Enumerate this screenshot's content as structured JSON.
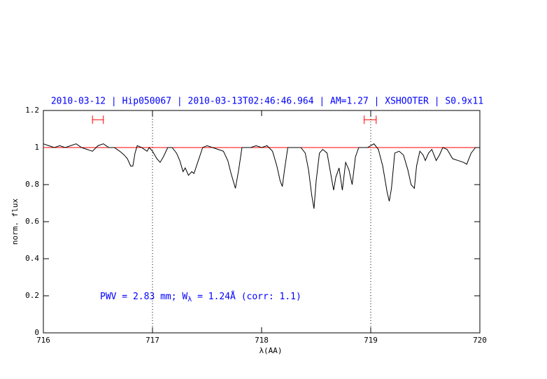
{
  "chart_data": {
    "type": "line",
    "title": "2010-03-12 | Hip050067 | 2010-03-13T02:46:46.964 | AM=1.27 | XSHOOTER | S0.9x11",
    "x_label": "λ(AA)",
    "y_label": "norm. flux",
    "annotation": {
      "prefix": "PWV = 2.83 mm; W",
      "subscript": "λ",
      "suffix": " = 1.24Å (corr: 1.1)"
    },
    "xlim": [
      716,
      720
    ],
    "ylim": [
      0,
      1.2
    ],
    "xticks": [
      716,
      717,
      718,
      719,
      720
    ],
    "yticks": [
      0,
      0.2,
      0.4,
      0.6,
      0.8,
      1,
      1.2
    ],
    "title_color": "#0000ff",
    "continuum": {
      "value": 1,
      "color": "#ff0000"
    },
    "vlines": [
      717,
      719
    ],
    "ranges": {
      "color": "#ff0000",
      "y": 1.15,
      "spans": [
        [
          716.45,
          716.55
        ],
        [
          718.94,
          719.05
        ]
      ]
    },
    "series": [
      {
        "color": "#000000",
        "x": [
          716.0,
          716.05,
          716.1,
          716.15,
          716.2,
          716.25,
          716.3,
          716.35,
          716.4,
          716.45,
          716.5,
          716.55,
          716.6,
          716.65,
          716.7,
          716.74,
          716.77,
          716.8,
          716.82,
          716.84,
          716.86,
          716.9,
          716.95,
          716.97,
          717.0,
          717.04,
          717.07,
          717.1,
          717.14,
          717.18,
          717.22,
          717.25,
          717.28,
          717.3,
          717.33,
          717.36,
          717.38,
          717.42,
          717.46,
          717.5,
          717.55,
          717.6,
          717.65,
          717.69,
          717.72,
          717.76,
          717.79,
          717.82,
          717.86,
          717.9,
          717.95,
          718.0,
          718.05,
          718.1,
          718.14,
          718.17,
          718.19,
          718.21,
          718.24,
          718.28,
          718.32,
          718.36,
          718.4,
          718.43,
          718.46,
          718.48,
          718.5,
          718.53,
          718.56,
          718.6,
          718.63,
          718.66,
          718.68,
          718.71,
          718.74,
          718.77,
          718.8,
          718.83,
          718.86,
          718.89,
          718.93,
          718.97,
          719.0,
          719.03,
          719.07,
          719.11,
          719.15,
          719.17,
          719.19,
          719.22,
          719.26,
          719.3,
          719.34,
          719.37,
          719.4,
          719.42,
          719.45,
          719.48,
          719.5,
          719.53,
          719.56,
          719.6,
          719.63,
          719.66,
          719.7,
          719.75,
          719.8,
          719.85,
          719.88,
          719.92,
          719.96,
          720.0
        ],
        "values": [
          1.02,
          1.01,
          1.0,
          1.01,
          1.0,
          1.01,
          1.02,
          1.0,
          0.99,
          0.98,
          1.01,
          1.02,
          1.0,
          1.0,
          0.98,
          0.96,
          0.94,
          0.9,
          0.9,
          0.97,
          1.01,
          1.0,
          0.98,
          1.0,
          0.98,
          0.94,
          0.92,
          0.95,
          1.0,
          1.0,
          0.97,
          0.93,
          0.87,
          0.89,
          0.85,
          0.87,
          0.86,
          0.93,
          1.0,
          1.01,
          1.0,
          0.99,
          0.98,
          0.93,
          0.86,
          0.78,
          0.88,
          1.0,
          1.0,
          1.0,
          1.01,
          1.0,
          1.01,
          0.98,
          0.9,
          0.82,
          0.79,
          0.88,
          1.0,
          1.0,
          1.0,
          1.0,
          0.97,
          0.88,
          0.74,
          0.67,
          0.82,
          0.97,
          0.99,
          0.97,
          0.87,
          0.77,
          0.84,
          0.89,
          0.77,
          0.92,
          0.88,
          0.8,
          0.95,
          1.0,
          1.0,
          1.0,
          1.01,
          1.02,
          0.99,
          0.9,
          0.76,
          0.71,
          0.78,
          0.97,
          0.98,
          0.96,
          0.88,
          0.8,
          0.78,
          0.9,
          0.98,
          0.96,
          0.93,
          0.97,
          0.99,
          0.93,
          0.96,
          1.0,
          0.99,
          0.94,
          0.93,
          0.92,
          0.91,
          0.97,
          1.0,
          1.0
        ]
      }
    ]
  }
}
